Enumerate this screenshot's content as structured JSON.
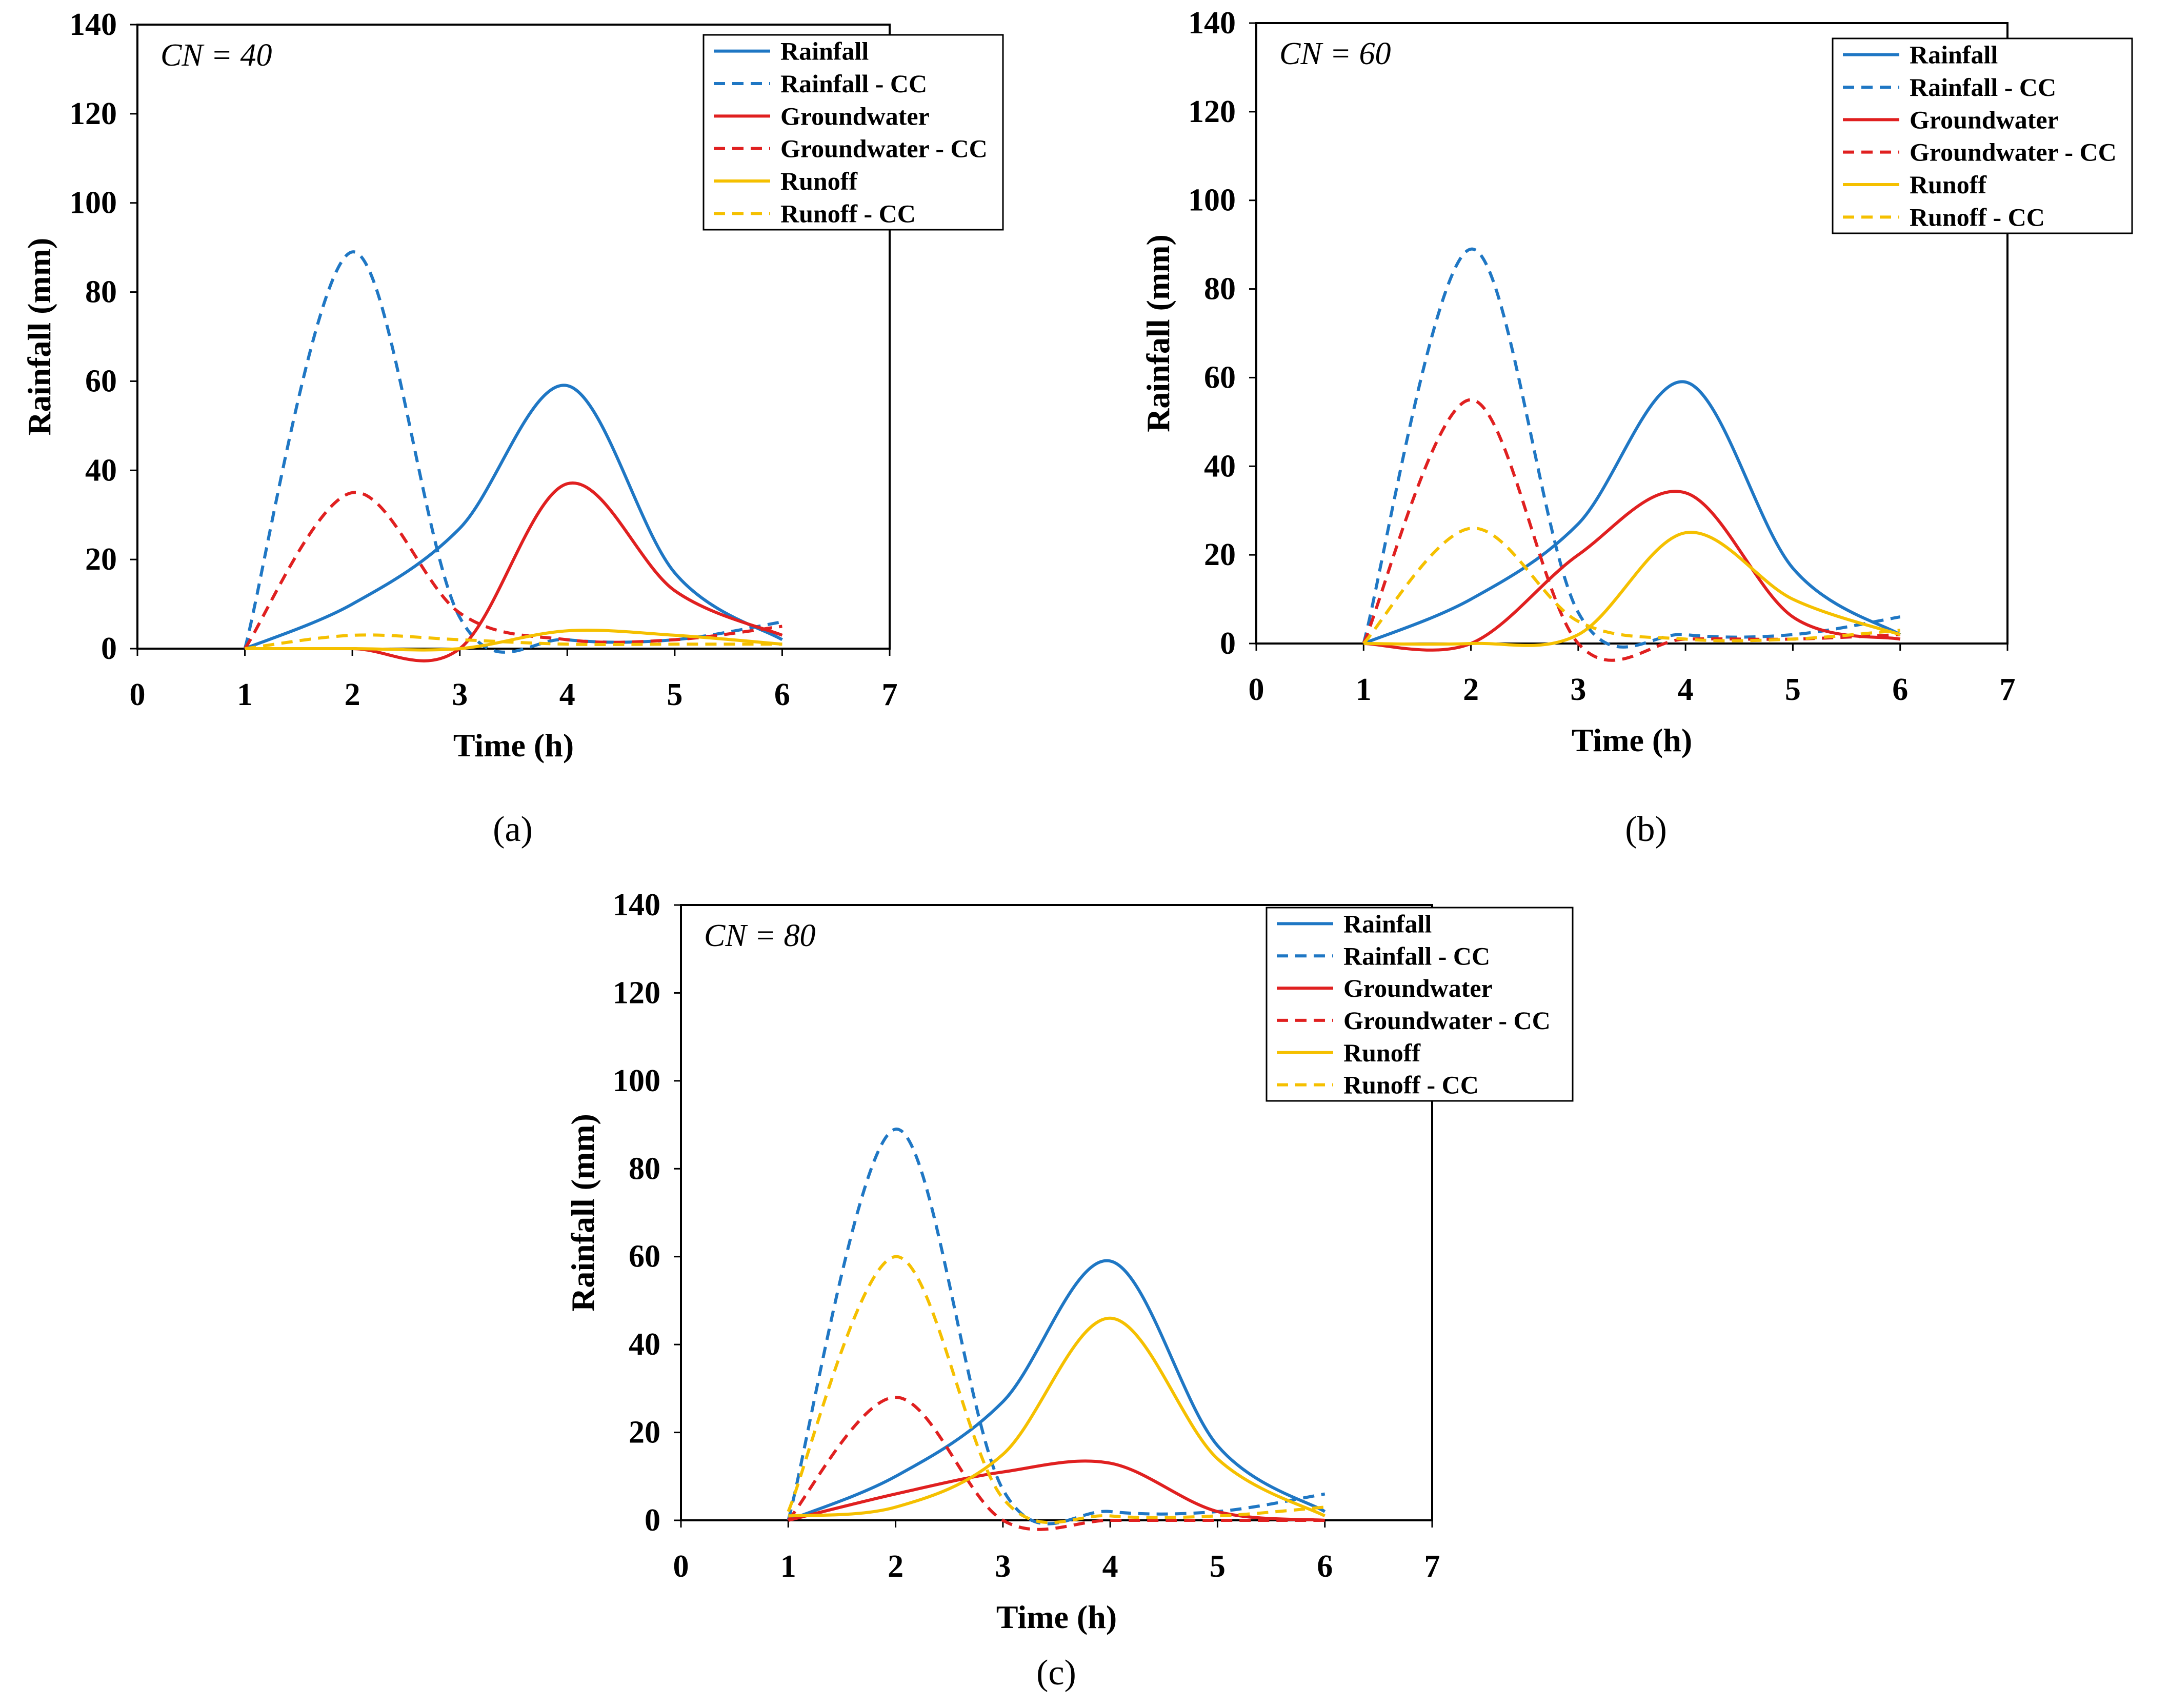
{
  "figure": {
    "colors": {
      "Rainfall": "#1f77c4",
      "Groundwater": "#e02020",
      "Runoff": "#f5c000",
      "axis": "#000000"
    },
    "chart_data": [
      {
        "type": "line",
        "panel_label": "(a)",
        "annotation": "CN = 40",
        "xlabel": "Time (h)",
        "ylabel": "Rainfall (mm)",
        "xlim": [
          0,
          7
        ],
        "ylim": [
          0,
          140
        ],
        "xticks": [
          0,
          1,
          2,
          3,
          4,
          5,
          6,
          7
        ],
        "yticks": [
          0,
          20,
          40,
          60,
          80,
          100,
          120,
          140
        ],
        "legend_position": "top-right",
        "series": [
          {
            "name": "Rainfall",
            "color_key": "Rainfall",
            "dashed": false,
            "x": [
              1,
              2,
              3,
              4,
              5,
              6
            ],
            "y": [
              0,
              10,
              27,
              59,
              17,
              2
            ]
          },
          {
            "name": "Rainfall - CC",
            "color_key": "Rainfall",
            "dashed": true,
            "x": [
              1,
              2,
              3,
              4,
              5,
              6
            ],
            "y": [
              0,
              89,
              7,
              2,
              2,
              6
            ]
          },
          {
            "name": "Groundwater",
            "color_key": "Groundwater",
            "dashed": false,
            "x": [
              1,
              2,
              3,
              4,
              5,
              6
            ],
            "y": [
              0,
              0,
              0,
              37,
              13,
              3
            ]
          },
          {
            "name": "Groundwater - CC",
            "color_key": "Groundwater",
            "dashed": true,
            "x": [
              1,
              2,
              3,
              4,
              5,
              6
            ],
            "y": [
              0,
              35,
              8,
              2,
              2,
              5
            ]
          },
          {
            "name": "Runoff",
            "color_key": "Runoff",
            "dashed": false,
            "x": [
              1,
              2,
              3,
              4,
              5,
              6
            ],
            "y": [
              0,
              0,
              0,
              4,
              3,
              1
            ]
          },
          {
            "name": "Runoff - CC",
            "color_key": "Runoff",
            "dashed": true,
            "x": [
              1,
              2,
              3,
              4,
              5,
              6
            ],
            "y": [
              0,
              3,
              2,
              1,
              1,
              1
            ]
          }
        ]
      },
      {
        "type": "line",
        "panel_label": "(b)",
        "annotation": "CN = 60",
        "xlabel": "Time (h)",
        "ylabel": "Rainfall (mm)",
        "xlim": [
          0,
          7
        ],
        "ylim": [
          0,
          140
        ],
        "xticks": [
          0,
          1,
          2,
          3,
          4,
          5,
          6,
          7
        ],
        "yticks": [
          0,
          20,
          40,
          60,
          80,
          100,
          120,
          140
        ],
        "legend_position": "top-right",
        "series": [
          {
            "name": "Rainfall",
            "color_key": "Rainfall",
            "dashed": false,
            "x": [
              1,
              2,
              3,
              4,
              5,
              6
            ],
            "y": [
              0,
              10,
              27,
              59,
              17,
              2
            ]
          },
          {
            "name": "Rainfall - CC",
            "color_key": "Rainfall",
            "dashed": true,
            "x": [
              1,
              2,
              3,
              4,
              5,
              6
            ],
            "y": [
              0,
              89,
              7,
              2,
              2,
              6
            ]
          },
          {
            "name": "Groundwater",
            "color_key": "Groundwater",
            "dashed": false,
            "x": [
              1,
              2,
              3,
              4,
              5,
              6
            ],
            "y": [
              0,
              0,
              20,
              34,
              6,
              1
            ]
          },
          {
            "name": "Groundwater - CC",
            "color_key": "Groundwater",
            "dashed": true,
            "x": [
              1,
              2,
              3,
              4,
              5,
              6
            ],
            "y": [
              0,
              55,
              0,
              1,
              1,
              2
            ]
          },
          {
            "name": "Runoff",
            "color_key": "Runoff",
            "dashed": false,
            "x": [
              1,
              2,
              3,
              4,
              5,
              6
            ],
            "y": [
              0,
              0,
              2,
              25,
              10,
              2
            ]
          },
          {
            "name": "Runoff - CC",
            "color_key": "Runoff",
            "dashed": true,
            "x": [
              1,
              2,
              3,
              4,
              5,
              6
            ],
            "y": [
              0,
              26,
              5,
              1,
              1,
              3
            ]
          }
        ]
      },
      {
        "type": "line",
        "panel_label": "(c)",
        "annotation": "CN = 80",
        "xlabel": "Time (h)",
        "ylabel": "Rainfall  (mm)",
        "xlim": [
          0,
          7
        ],
        "ylim": [
          0,
          140
        ],
        "xticks": [
          0,
          1,
          2,
          3,
          4,
          5,
          6,
          7
        ],
        "yticks": [
          0,
          20,
          40,
          60,
          80,
          100,
          120,
          140
        ],
        "legend_position": "top-right",
        "series": [
          {
            "name": "Rainfall",
            "color_key": "Rainfall",
            "dashed": false,
            "x": [
              1,
              2,
              3,
              4,
              5,
              6
            ],
            "y": [
              0,
              10,
              27,
              59,
              17,
              2
            ]
          },
          {
            "name": "Rainfall - CC",
            "color_key": "Rainfall",
            "dashed": true,
            "x": [
              1,
              2,
              3,
              4,
              5,
              6
            ],
            "y": [
              0,
              89,
              7,
              2,
              2,
              6
            ]
          },
          {
            "name": "Groundwater",
            "color_key": "Groundwater",
            "dashed": false,
            "x": [
              1,
              2,
              3,
              4,
              5,
              6
            ],
            "y": [
              0,
              6,
              11,
              13,
              2,
              0
            ]
          },
          {
            "name": "Groundwater - CC",
            "color_key": "Groundwater",
            "dashed": true,
            "x": [
              1,
              2,
              3,
              4,
              5,
              6
            ],
            "y": [
              0,
              28,
              0,
              0,
              0,
              0
            ]
          },
          {
            "name": "Runoff",
            "color_key": "Runoff",
            "dashed": false,
            "x": [
              1,
              2,
              3,
              4,
              5,
              6
            ],
            "y": [
              1,
              3,
              15,
              46,
              14,
              1
            ]
          },
          {
            "name": "Runoff - CC",
            "color_key": "Runoff",
            "dashed": true,
            "x": [
              1,
              2,
              3,
              4,
              5,
              6
            ],
            "y": [
              2,
              60,
              5,
              1,
              1,
              3
            ]
          }
        ]
      }
    ]
  }
}
